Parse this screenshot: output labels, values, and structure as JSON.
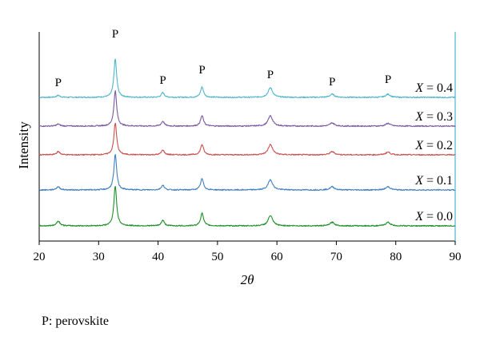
{
  "chart_data": {
    "type": "line",
    "xlabel": "2θ",
    "ylabel": "Intensity",
    "xlim": [
      20,
      90
    ],
    "x_ticks": [
      "20",
      "30",
      "40",
      "50",
      "60",
      "70",
      "80",
      "90"
    ],
    "peak_marker": "P",
    "peak_positions": [
      23.2,
      32.8,
      40.8,
      47.4,
      58.9,
      69.3,
      78.7
    ],
    "series": [
      {
        "name": "X = 0.4",
        "var": "X",
        "value_text": " = 0.4",
        "color": "#4fb6cc",
        "peak_heights": [
          2.5,
          48,
          6,
          13,
          12,
          4,
          4
        ]
      },
      {
        "name": "X = 0.3",
        "var": "X",
        "value_text": " = 0.3",
        "color": "#7a57a3",
        "peak_heights": [
          2.5,
          44,
          6,
          13,
          13,
          4,
          3.5
        ]
      },
      {
        "name": "X = 0.2",
        "var": "X",
        "value_text": " = 0.2",
        "color": "#c9504f",
        "peak_heights": [
          4,
          40,
          6,
          13,
          13,
          4,
          3.5
        ]
      },
      {
        "name": "X = 0.1",
        "var": "X",
        "value_text": " = 0.1",
        "color": "#3f7fc1",
        "peak_heights": [
          4,
          44,
          6,
          14,
          13,
          4,
          4
        ]
      },
      {
        "name": "X = 0.0",
        "var": "X",
        "value_text": " = 0.0",
        "color": "#1f8f2a",
        "peak_heights": [
          6,
          50,
          7,
          16,
          13,
          4.5,
          4.5
        ]
      }
    ]
  },
  "footnote": "P: perovskite"
}
